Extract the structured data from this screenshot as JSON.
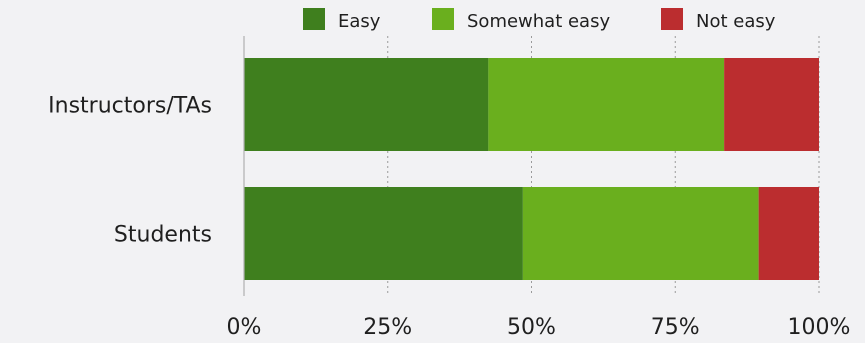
{
  "chart_data": {
    "type": "bar",
    "orientation": "horizontal",
    "stacked": true,
    "categories": [
      "Instructors/TAs",
      "Students"
    ],
    "series": [
      {
        "name": "Easy",
        "color": "#3f7f1e",
        "values": [
          42.5,
          48.5
        ]
      },
      {
        "name": "Somewhat easy",
        "color": "#6aaf1e",
        "values": [
          41.0,
          41.0
        ]
      },
      {
        "name": "Not easy",
        "color": "#bb2d2f",
        "values": [
          16.5,
          10.5
        ]
      }
    ],
    "x_ticks": [
      "0%",
      "25%",
      "50%",
      "75%",
      "100%"
    ],
    "xlim": [
      0,
      100
    ],
    "title": "",
    "xlabel": "",
    "ylabel": "",
    "grid": "vertical dashed",
    "legend_position": "top"
  }
}
